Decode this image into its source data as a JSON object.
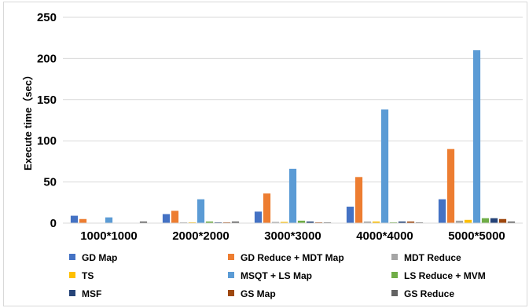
{
  "chart_data": {
    "type": "bar",
    "title": "",
    "xlabel": "",
    "ylabel": "Execute time（sec）",
    "ylim": [
      0,
      250
    ],
    "yticks": [
      0,
      50,
      100,
      150,
      200,
      250
    ],
    "grid": true,
    "legend_position": "bottom",
    "categories": [
      "1000*1000",
      "2000*2000",
      "3000*3000",
      "4000*4000",
      "5000*5000"
    ],
    "series": [
      {
        "name": "GD Map",
        "color": "#4472c4",
        "values": [
          9,
          11,
          14,
          20,
          29
        ]
      },
      {
        "name": "GD Reduce + MDT Map",
        "color": "#ed7d31",
        "values": [
          5,
          15,
          36,
          56,
          90
        ]
      },
      {
        "name": "MDT Reduce",
        "color": "#a5a5a5",
        "values": [
          0.3,
          1,
          1.5,
          2,
          3
        ]
      },
      {
        "name": "TS",
        "color": "#ffc000",
        "values": [
          0.3,
          1,
          1.5,
          2,
          4
        ]
      },
      {
        "name": "MSQT + LS Map",
        "color": "#5b9bd5",
        "values": [
          7,
          29,
          66,
          138,
          210
        ]
      },
      {
        "name": "LS Reduce + MVM",
        "color": "#70ad47",
        "values": [
          0.3,
          2,
          3,
          1,
          6
        ]
      },
      {
        "name": "MSF",
        "color": "#264478",
        "values": [
          0.3,
          1,
          2,
          2,
          6
        ]
      },
      {
        "name": "GS Map",
        "color": "#9e480e",
        "values": [
          0.3,
          1,
          1,
          2,
          5
        ]
      },
      {
        "name": "GS Reduce",
        "color": "#636363",
        "values": [
          2,
          2,
          1,
          1,
          2
        ]
      }
    ]
  }
}
